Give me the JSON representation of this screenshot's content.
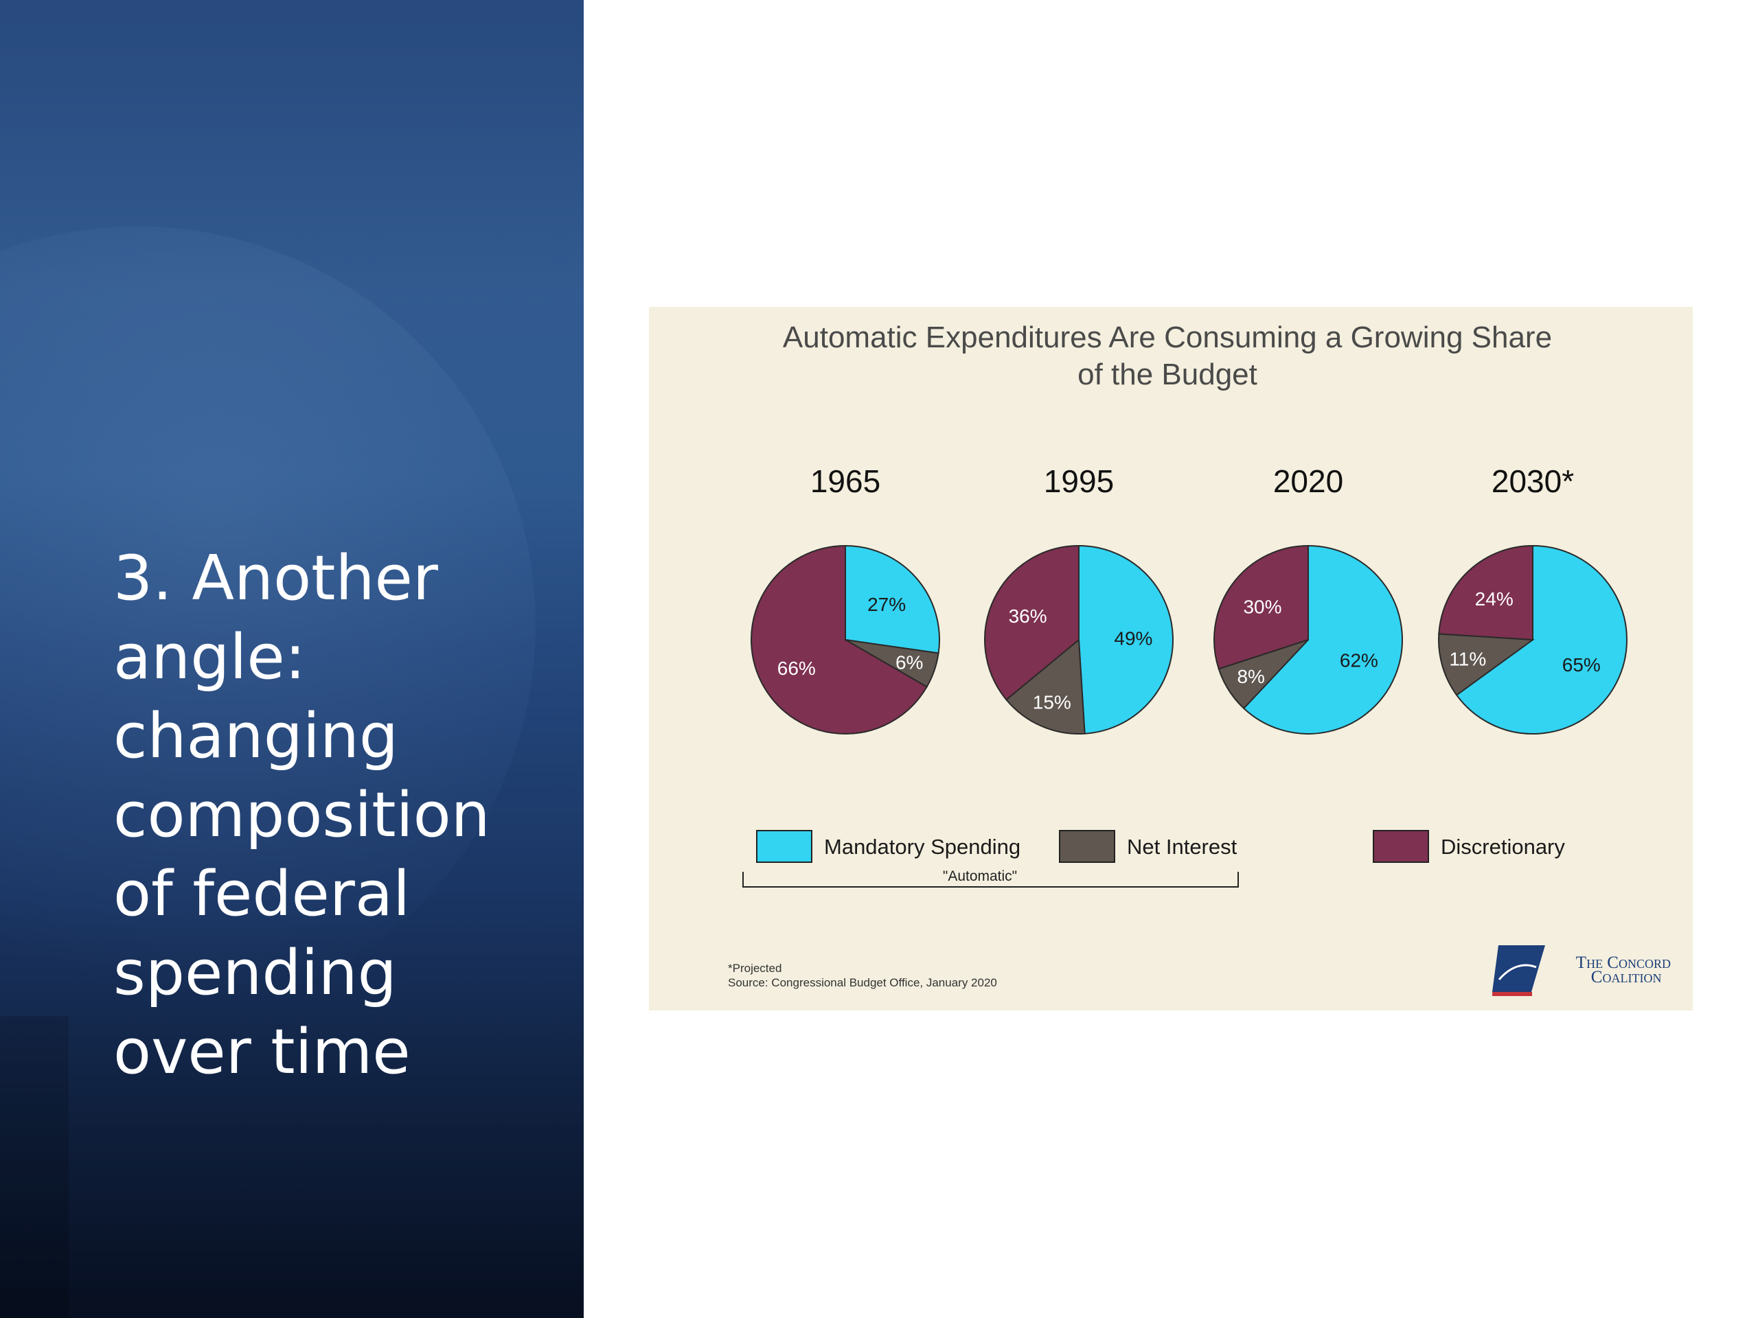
{
  "slide": {
    "title": "3. Another\nangle:\nchanging\ncomposition\nof federal\nspending\nover time"
  },
  "colors": {
    "mandatory": "#33d3f2",
    "net_interest": "#605750",
    "discretionary": "#7e3150",
    "panel_bg": "#f4efde",
    "slide_bg_top": "#2c5188",
    "slide_bg_bottom": "#070f20"
  },
  "chart_data": {
    "type": "pie",
    "title": "Automatic Expenditures Are Consuming a Growing Share of the Budget",
    "title_lines": [
      "Automatic Expenditures Are Consuming a Growing Share",
      "of the Budget"
    ],
    "categories": [
      "Mandatory Spending",
      "Net Interest",
      "Discretionary"
    ],
    "pies": [
      {
        "label": "1965",
        "values": [
          27,
          6,
          66
        ],
        "value_labels": [
          "27%",
          "6%",
          "66%"
        ]
      },
      {
        "label": "1995",
        "values": [
          49,
          15,
          36
        ],
        "value_labels": [
          "49%",
          "15%",
          "36%"
        ]
      },
      {
        "label": "2020",
        "values": [
          62,
          8,
          30
        ],
        "value_labels": [
          "62%",
          "8%",
          "30%"
        ]
      },
      {
        "label": "2030*",
        "values": [
          65,
          11,
          24
        ],
        "value_labels": [
          "65%",
          "11%",
          "24%"
        ]
      }
    ],
    "legend": {
      "items": [
        "Mandatory Spending",
        "Net Interest",
        "Discretionary"
      ],
      "group_label": "\"Automatic\"",
      "placement": "bottom"
    },
    "footnote": "*Projected",
    "source": "Source: Congressional Budget Office, January 2020"
  },
  "logo": {
    "line1": "The Concord",
    "line2": "Coalition"
  }
}
